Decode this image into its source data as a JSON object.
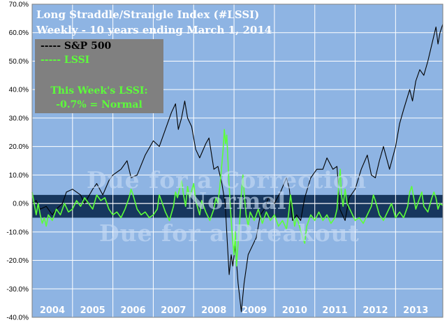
{
  "chart_data": {
    "type": "line",
    "title": "Long Straddle/Strangle Index (#LSSI)",
    "subtitle": "Weekly - 10 years ending March 1, 2014",
    "ylim": [
      -40,
      70
    ],
    "y_ticks": [
      "-40.0%",
      "-30.0%",
      "-20.0%",
      "-10.0%",
      "0.0%",
      "10.0%",
      "20.0%",
      "30.0%",
      "40.0%",
      "50.0%",
      "60.0%",
      "70.0%"
    ],
    "y_tick_values": [
      -40,
      -30,
      -20,
      -10,
      0,
      10,
      20,
      30,
      40,
      50,
      60,
      70
    ],
    "xlim": [
      2004.0,
      2014.17
    ],
    "years": [
      "2004",
      "2005",
      "2006",
      "2007",
      "2008",
      "2009",
      "2010",
      "2011",
      "2012",
      "2013"
    ],
    "grid": true,
    "legend_position": "top-left",
    "normal_band": [
      -5,
      3
    ],
    "colors": {
      "plot_background": "#8eb4e3",
      "normal_band": "#17375e",
      "sp500": "#000000",
      "lssi": "#5cff3a"
    },
    "series": [
      {
        "name": "S&P 500",
        "points": [
          [
            2004.0,
            0
          ],
          [
            2004.1,
            1
          ],
          [
            2004.2,
            -2
          ],
          [
            2004.35,
            -1
          ],
          [
            2004.5,
            -4
          ],
          [
            2004.6,
            -2
          ],
          [
            2004.75,
            0
          ],
          [
            2004.85,
            4
          ],
          [
            2005.0,
            5
          ],
          [
            2005.2,
            3
          ],
          [
            2005.3,
            0
          ],
          [
            2005.5,
            5
          ],
          [
            2005.6,
            7
          ],
          [
            2005.75,
            3
          ],
          [
            2005.9,
            8
          ],
          [
            2006.0,
            10
          ],
          [
            2006.2,
            12
          ],
          [
            2006.35,
            15
          ],
          [
            2006.45,
            9
          ],
          [
            2006.6,
            10
          ],
          [
            2006.8,
            17
          ],
          [
            2007.0,
            22
          ],
          [
            2007.15,
            20
          ],
          [
            2007.3,
            26
          ],
          [
            2007.45,
            32
          ],
          [
            2007.55,
            35
          ],
          [
            2007.62,
            26
          ],
          [
            2007.7,
            30
          ],
          [
            2007.78,
            36
          ],
          [
            2007.85,
            30
          ],
          [
            2007.95,
            27
          ],
          [
            2008.05,
            19
          ],
          [
            2008.15,
            16
          ],
          [
            2008.3,
            21
          ],
          [
            2008.38,
            23
          ],
          [
            2008.5,
            12
          ],
          [
            2008.6,
            13
          ],
          [
            2008.7,
            7
          ],
          [
            2008.78,
            0
          ],
          [
            2008.83,
            -13
          ],
          [
            2008.88,
            -25
          ],
          [
            2008.93,
            -18
          ],
          [
            2008.97,
            -22
          ],
          [
            2009.03,
            -15
          ],
          [
            2009.1,
            -28
          ],
          [
            2009.18,
            -38
          ],
          [
            2009.25,
            -28
          ],
          [
            2009.35,
            -18
          ],
          [
            2009.45,
            -15
          ],
          [
            2009.55,
            -12
          ],
          [
            2009.65,
            -4
          ],
          [
            2009.75,
            -2
          ],
          [
            2009.85,
            2
          ],
          [
            2010.0,
            0
          ],
          [
            2010.15,
            4
          ],
          [
            2010.3,
            9
          ],
          [
            2010.37,
            5
          ],
          [
            2010.45,
            -6
          ],
          [
            2010.55,
            -4
          ],
          [
            2010.65,
            -6
          ],
          [
            2010.75,
            2
          ],
          [
            2010.9,
            9
          ],
          [
            2011.05,
            12
          ],
          [
            2011.2,
            12
          ],
          [
            2011.3,
            16
          ],
          [
            2011.45,
            12
          ],
          [
            2011.55,
            13
          ],
          [
            2011.62,
            -2
          ],
          [
            2011.75,
            -6
          ],
          [
            2011.85,
            2
          ],
          [
            2012.0,
            5
          ],
          [
            2012.15,
            12
          ],
          [
            2012.3,
            17
          ],
          [
            2012.4,
            10
          ],
          [
            2012.5,
            9
          ],
          [
            2012.6,
            15
          ],
          [
            2012.7,
            20
          ],
          [
            2012.85,
            12
          ],
          [
            2013.0,
            20
          ],
          [
            2013.1,
            28
          ],
          [
            2013.2,
            33
          ],
          [
            2013.35,
            40
          ],
          [
            2013.42,
            36
          ],
          [
            2013.5,
            43
          ],
          [
            2013.6,
            47
          ],
          [
            2013.7,
            45
          ],
          [
            2013.8,
            50
          ],
          [
            2013.9,
            56
          ],
          [
            2014.0,
            62
          ],
          [
            2014.05,
            56
          ],
          [
            2014.1,
            60
          ],
          [
            2014.17,
            63
          ]
        ]
      },
      {
        "name": "LSSI",
        "points": [
          [
            2004.0,
            4
          ],
          [
            2004.05,
            0
          ],
          [
            2004.1,
            -4
          ],
          [
            2004.15,
            0
          ],
          [
            2004.2,
            -4
          ],
          [
            2004.25,
            -7
          ],
          [
            2004.3,
            -5
          ],
          [
            2004.35,
            -8
          ],
          [
            2004.4,
            -4
          ],
          [
            2004.5,
            -6
          ],
          [
            2004.6,
            -2
          ],
          [
            2004.7,
            -4
          ],
          [
            2004.8,
            0
          ],
          [
            2004.9,
            -3
          ],
          [
            2005.0,
            -2
          ],
          [
            2005.1,
            1
          ],
          [
            2005.2,
            -1
          ],
          [
            2005.3,
            2
          ],
          [
            2005.4,
            0
          ],
          [
            2005.5,
            -2
          ],
          [
            2005.6,
            3
          ],
          [
            2005.7,
            1
          ],
          [
            2005.8,
            2
          ],
          [
            2005.9,
            -2
          ],
          [
            2006.0,
            -4
          ],
          [
            2006.1,
            -3
          ],
          [
            2006.2,
            -5
          ],
          [
            2006.3,
            -2
          ],
          [
            2006.4,
            2
          ],
          [
            2006.45,
            5
          ],
          [
            2006.5,
            3
          ],
          [
            2006.6,
            -2
          ],
          [
            2006.7,
            -4
          ],
          [
            2006.8,
            -3
          ],
          [
            2006.9,
            -5
          ],
          [
            2007.0,
            -4
          ],
          [
            2007.1,
            -2
          ],
          [
            2007.15,
            3
          ],
          [
            2007.2,
            1
          ],
          [
            2007.3,
            -3
          ],
          [
            2007.4,
            -6
          ],
          [
            2007.5,
            -1
          ],
          [
            2007.55,
            4
          ],
          [
            2007.6,
            2
          ],
          [
            2007.7,
            8
          ],
          [
            2007.75,
            3
          ],
          [
            2007.8,
            -1
          ],
          [
            2007.85,
            6
          ],
          [
            2007.9,
            2
          ],
          [
            2008.0,
            7
          ],
          [
            2008.05,
            1
          ],
          [
            2008.15,
            -4
          ],
          [
            2008.2,
            1
          ],
          [
            2008.3,
            -3
          ],
          [
            2008.4,
            -6
          ],
          [
            2008.5,
            -2
          ],
          [
            2008.55,
            2
          ],
          [
            2008.6,
            0
          ],
          [
            2008.65,
            6
          ],
          [
            2008.7,
            14
          ],
          [
            2008.73,
            19
          ],
          [
            2008.76,
            26
          ],
          [
            2008.79,
            21
          ],
          [
            2008.82,
            24
          ],
          [
            2008.85,
            15
          ],
          [
            2008.88,
            6
          ],
          [
            2008.92,
            -4
          ],
          [
            2008.96,
            -12
          ],
          [
            2009.0,
            -18
          ],
          [
            2009.03,
            -10
          ],
          [
            2009.06,
            -22
          ],
          [
            2009.1,
            -14
          ],
          [
            2009.14,
            -6
          ],
          [
            2009.18,
            3
          ],
          [
            2009.22,
            10
          ],
          [
            2009.26,
            2
          ],
          [
            2009.3,
            -4
          ],
          [
            2009.35,
            -8
          ],
          [
            2009.4,
            -3
          ],
          [
            2009.5,
            -6
          ],
          [
            2009.6,
            -2
          ],
          [
            2009.7,
            -7
          ],
          [
            2009.8,
            -3
          ],
          [
            2009.9,
            -6
          ],
          [
            2010.0,
            -4
          ],
          [
            2010.1,
            -8
          ],
          [
            2010.2,
            -6
          ],
          [
            2010.3,
            -9
          ],
          [
            2010.35,
            -4
          ],
          [
            2010.4,
            3
          ],
          [
            2010.45,
            -2
          ],
          [
            2010.5,
            -8
          ],
          [
            2010.55,
            -5
          ],
          [
            2010.6,
            -7
          ],
          [
            2010.7,
            -12
          ],
          [
            2010.75,
            -14
          ],
          [
            2010.8,
            -8
          ],
          [
            2010.9,
            -4
          ],
          [
            2011.0,
            -6
          ],
          [
            2011.1,
            -3
          ],
          [
            2011.2,
            -6
          ],
          [
            2011.3,
            -4
          ],
          [
            2011.4,
            -7
          ],
          [
            2011.5,
            -5
          ],
          [
            2011.55,
            -2
          ],
          [
            2011.6,
            8
          ],
          [
            2011.63,
            12
          ],
          [
            2011.66,
            3
          ],
          [
            2011.7,
            -1
          ],
          [
            2011.75,
            5
          ],
          [
            2011.8,
            0
          ],
          [
            2011.9,
            -3
          ],
          [
            2012.0,
            -6
          ],
          [
            2012.1,
            -5
          ],
          [
            2012.2,
            -7
          ],
          [
            2012.3,
            -4
          ],
          [
            2012.4,
            -1
          ],
          [
            2012.45,
            3
          ],
          [
            2012.5,
            1
          ],
          [
            2012.6,
            -4
          ],
          [
            2012.7,
            -6
          ],
          [
            2012.8,
            -3
          ],
          [
            2012.9,
            0
          ],
          [
            2013.0,
            -5
          ],
          [
            2013.1,
            -3
          ],
          [
            2013.2,
            -5
          ],
          [
            2013.3,
            -1
          ],
          [
            2013.35,
            4
          ],
          [
            2013.4,
            6
          ],
          [
            2013.45,
            2
          ],
          [
            2013.5,
            -2
          ],
          [
            2013.6,
            2
          ],
          [
            2013.65,
            4
          ],
          [
            2013.7,
            -1
          ],
          [
            2013.8,
            -3
          ],
          [
            2013.9,
            2
          ],
          [
            2013.95,
            4
          ],
          [
            2014.0,
            2
          ],
          [
            2014.05,
            -2
          ],
          [
            2014.1,
            0
          ],
          [
            2014.17,
            -0.7
          ]
        ]
      }
    ]
  },
  "legend": {
    "sp500_label": "----- S&P 500",
    "lssi_label": "----- LSSI"
  },
  "this_week": {
    "label": "This Week's LSSI:",
    "value": "-0.7% = Normal"
  },
  "zones": {
    "correction": "Due for a Correction",
    "normal": "Normal",
    "breakout": "Due for a Breakout"
  }
}
